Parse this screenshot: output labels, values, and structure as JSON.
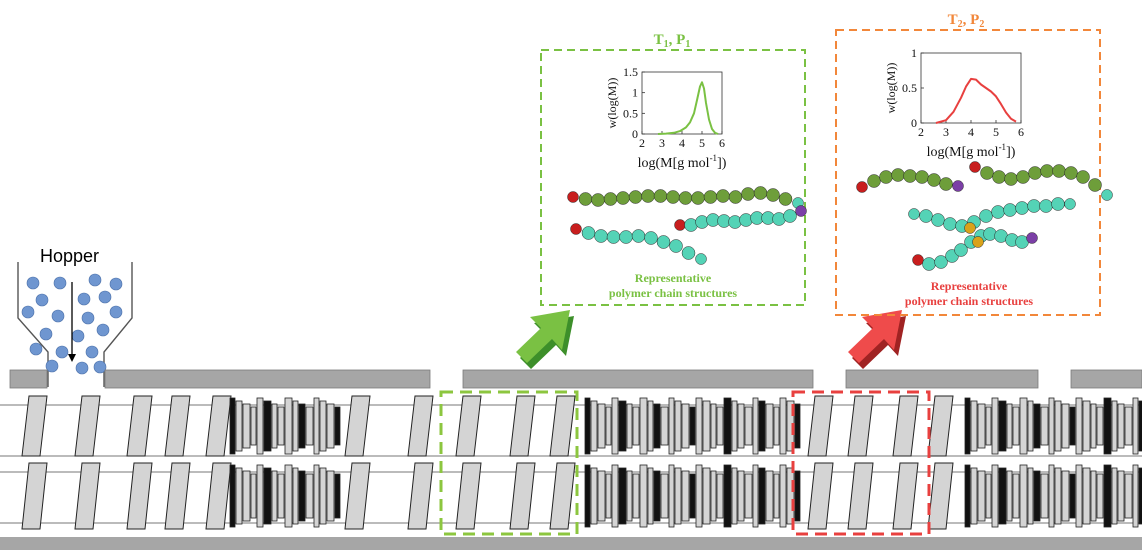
{
  "hopper": {
    "label": "Hopper"
  },
  "colors": {
    "green": "#7ac143",
    "orange": "#f2873a",
    "red": "#e8403f",
    "green_bead": "#6e9e3a",
    "cyan_bead": "#54d3b6",
    "red_bead": "#c81e1e",
    "purple_bead": "#7b3fa6",
    "gold_bead": "#d9a21b",
    "pellet": "#6f96d0",
    "barrel": "#a6a6a6",
    "element_fill": "#d4d4d4"
  },
  "panels": [
    {
      "id": "left",
      "header_main": "T",
      "header_sub1": "1",
      "header_sep": ", P",
      "header_sub2": "1",
      "caption_line1": "Representative",
      "caption_line2": "polymer chain structures",
      "curve_color": "green"
    },
    {
      "id": "right",
      "header_main": "T",
      "header_sub1": "2",
      "header_sep": ", P",
      "header_sub2": "2",
      "caption_line1": "Representative",
      "caption_line2": "polymer chain structures",
      "curve_color": "red"
    }
  ],
  "chart_data": [
    {
      "type": "line",
      "xlabel_main": "log(M[g mol",
      "xlabel_sup": "-1",
      "xlabel_end": "])",
      "ylabel": "w(log(M))",
      "xlim": [
        2,
        6
      ],
      "ylim": [
        0,
        1.5
      ],
      "x_ticks": [
        "2",
        "3",
        "4",
        "5",
        "6"
      ],
      "y_ticks": [
        "0",
        "0.5",
        "1",
        "1.5"
      ],
      "series": [
        {
          "x": [
            2.8,
            3.2,
            3.6,
            3.9,
            4.2,
            4.4,
            4.6,
            4.75,
            4.9,
            5.0,
            5.1,
            5.2,
            5.35,
            5.5,
            5.65,
            5.8
          ],
          "y": [
            0.0,
            0.01,
            0.03,
            0.07,
            0.16,
            0.28,
            0.5,
            0.82,
            1.15,
            1.25,
            1.1,
            0.75,
            0.35,
            0.12,
            0.03,
            0.0
          ]
        }
      ]
    },
    {
      "type": "line",
      "xlabel_main": "log(M[g mol",
      "xlabel_sup": "-1",
      "xlabel_end": "])",
      "ylabel": "w(log(M))",
      "xlim": [
        2,
        6
      ],
      "ylim": [
        0,
        1
      ],
      "x_ticks": [
        "2",
        "3",
        "4",
        "5",
        "6"
      ],
      "y_ticks": [
        "0",
        "0.5",
        "1"
      ],
      "series": [
        {
          "x": [
            2.6,
            3.0,
            3.3,
            3.6,
            3.8,
            4.0,
            4.2,
            4.4,
            4.6,
            4.8,
            5.0,
            5.2,
            5.4,
            5.6,
            5.8
          ],
          "y": [
            0.0,
            0.04,
            0.16,
            0.36,
            0.52,
            0.63,
            0.62,
            0.55,
            0.5,
            0.45,
            0.38,
            0.27,
            0.15,
            0.06,
            0.02
          ]
        }
      ]
    }
  ]
}
